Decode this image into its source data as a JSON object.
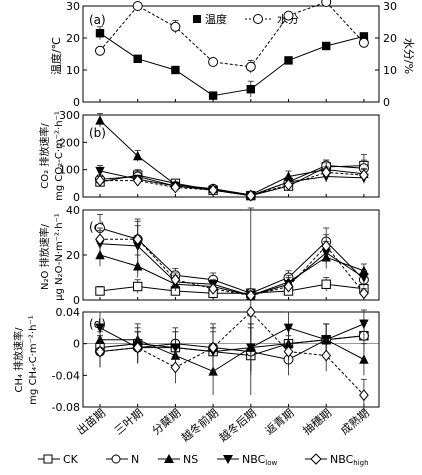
{
  "colors": {
    "ink": "#000000",
    "series_gray": "#333333",
    "light": "#ffffff"
  },
  "x_categories": [
    "出苗期",
    "三叶期",
    "分蘖期",
    "越冬前期",
    "越冬后期",
    "返青期",
    "抽穗期",
    "成熟期"
  ],
  "legend_bottom": [
    "CK",
    "N",
    "NS",
    "NBC_low",
    "NBC_high"
  ],
  "chart_data": [
    {
      "type": "line",
      "panel": "(a)",
      "categories": [
        "出苗期",
        "三叶期",
        "分蘖期",
        "越冬前期",
        "越冬后期",
        "返青期",
        "抽穗期",
        "成熟期"
      ],
      "ylabel": "温度/℃",
      "y2label": "水分/%",
      "ylim": [
        0,
        30
      ],
      "yticks": [
        0,
        10,
        20,
        30
      ],
      "y2lim": [
        0,
        30
      ],
      "y2ticks": [
        0,
        10,
        20,
        30
      ],
      "legend": [
        "温度",
        "水分"
      ],
      "series": [
        {
          "name": "温度",
          "marker": "square-filled",
          "axis": "left",
          "dashed": false,
          "values": [
            21.5,
            13.5,
            10,
            2,
            4,
            13,
            17.5,
            20.5
          ],
          "err": [
            2,
            0,
            0,
            0,
            2.5,
            0,
            0,
            0
          ]
        },
        {
          "name": "水分",
          "marker": "circle-open",
          "axis": "right",
          "dashed": true,
          "values": [
            16,
            30,
            23.5,
            12.5,
            11,
            27,
            34,
            18.5
          ],
          "err": [
            0,
            0,
            2,
            0,
            2,
            0,
            0,
            0
          ]
        }
      ]
    },
    {
      "type": "line",
      "panel": "(b)",
      "categories": [
        "出苗期",
        "三叶期",
        "分蘖期",
        "越冬前期",
        "越冬后期",
        "返青期",
        "抽穗期",
        "成熟期"
      ],
      "ylabel": "CO₂ 排放速率/",
      "ylabel2": "mg CO₂-C·m⁻²·h⁻¹",
      "ylim": [
        0,
        300
      ],
      "yticks": [
        0,
        100,
        200,
        300
      ],
      "series": [
        {
          "name": "CK",
          "values": [
            55,
            80,
            50,
            25,
            5,
            40,
            110,
            115
          ],
          "err": [
            15,
            20,
            10,
            8,
            3,
            15,
            25,
            40
          ]
        },
        {
          "name": "N",
          "values": [
            65,
            75,
            40,
            30,
            5,
            55,
            115,
            105
          ],
          "err": [
            15,
            15,
            10,
            10,
            3,
            20,
            20,
            30
          ]
        },
        {
          "name": "NS",
          "values": [
            280,
            150,
            45,
            30,
            8,
            75,
            100,
            85
          ],
          "err": [
            25,
            20,
            10,
            10,
            3,
            20,
            25,
            20
          ]
        },
        {
          "name": "NBC_low",
          "values": [
            95,
            65,
            40,
            25,
            5,
            55,
            75,
            70
          ],
          "err": [
            20,
            15,
            10,
            8,
            3,
            15,
            20,
            20
          ]
        },
        {
          "name": "NBC_high",
          "values": [
            60,
            60,
            35,
            25,
            5,
            45,
            90,
            80
          ],
          "err": [
            15,
            15,
            10,
            8,
            3,
            15,
            20,
            20
          ]
        }
      ]
    },
    {
      "type": "line",
      "panel": "(c)",
      "categories": [
        "出苗期",
        "三叶期",
        "分蘖期",
        "越冬前期",
        "越冬后期",
        "返青期",
        "抽穗期",
        "成熟期"
      ],
      "ylabel": "N₂O 排放速率/",
      "ylabel2": "μg N₂O-N·m⁻²·h⁻¹",
      "ylim": [
        0,
        40
      ],
      "yticks": [
        0,
        20,
        40
      ],
      "series": [
        {
          "name": "CK",
          "values": [
            4,
            6,
            4,
            3,
            3,
            4,
            7,
            5
          ],
          "err": [
            2,
            3,
            2,
            2,
            40,
            2,
            3,
            2
          ]
        },
        {
          "name": "N",
          "values": [
            32,
            27,
            11,
            9,
            3,
            10,
            26,
            9
          ],
          "err": [
            6,
            8,
            3,
            3,
            2,
            3,
            6,
            3
          ]
        },
        {
          "name": "NS",
          "values": [
            20,
            15,
            7,
            6,
            2,
            8,
            19,
            13
          ],
          "err": [
            5,
            5,
            3,
            2,
            2,
            3,
            5,
            3
          ]
        },
        {
          "name": "NBC_low",
          "values": [
            25,
            24,
            8,
            7,
            2,
            7,
            21,
            10
          ],
          "err": [
            6,
            12,
            3,
            2,
            2,
            3,
            5,
            3
          ]
        },
        {
          "name": "NBC_high",
          "values": [
            27,
            27,
            9,
            5,
            2,
            6,
            24,
            3
          ],
          "err": [
            5,
            6,
            3,
            2,
            2,
            2,
            5,
            2
          ]
        }
      ]
    },
    {
      "type": "line",
      "panel": "(d)",
      "categories": [
        "出苗期",
        "三叶期",
        "分蘖期",
        "越冬前期",
        "越冬后期",
        "返青期",
        "抽穗期",
        "成熟期"
      ],
      "ylabel": "CH₄ 排放速率/",
      "ylabel2": "mg CH₄-C·m⁻²·h⁻¹",
      "ylim": [
        -0.08,
        0.04
      ],
      "yticks": [
        -0.08,
        -0.04,
        0,
        0.04
      ],
      "ytick_labels": [
        "-0.08",
        "-0.04",
        "0",
        "0.04"
      ],
      "series": [
        {
          "name": "CK",
          "values": [
            -0.005,
            0.0,
            -0.005,
            -0.01,
            -0.015,
            0.0,
            0.005,
            0.01
          ],
          "err": [
            0.02,
            0.02,
            0.02,
            0.03,
            0.05,
            0.02,
            0.02,
            0.02
          ]
        },
        {
          "name": "N",
          "values": [
            -0.01,
            -0.005,
            0.0,
            -0.005,
            -0.01,
            -0.02,
            0.005,
            0.01
          ],
          "err": [
            0.02,
            0.02,
            0.02,
            0.02,
            0.03,
            0.02,
            0.02,
            0.02
          ]
        },
        {
          "name": "NS",
          "values": [
            0.005,
            0.005,
            -0.015,
            -0.035,
            -0.005,
            0.0,
            0.005,
            -0.02
          ],
          "err": [
            0.02,
            0.02,
            0.02,
            0.03,
            0.03,
            0.02,
            0.02,
            0.02
          ]
        },
        {
          "name": "NBC_low",
          "values": [
            0.02,
            -0.005,
            -0.005,
            -0.01,
            -0.005,
            0.02,
            0.005,
            0.025
          ],
          "err": [
            0.02,
            0.02,
            0.02,
            0.03,
            0.03,
            0.02,
            0.02,
            0.02
          ]
        },
        {
          "name": "NBC_high",
          "values": [
            -0.01,
            -0.005,
            -0.03,
            -0.005,
            0.04,
            -0.01,
            -0.015,
            -0.065
          ],
          "err": [
            0.02,
            0.02,
            0.02,
            0.03,
            0.03,
            0.02,
            0.02,
            0.02
          ]
        }
      ]
    }
  ]
}
